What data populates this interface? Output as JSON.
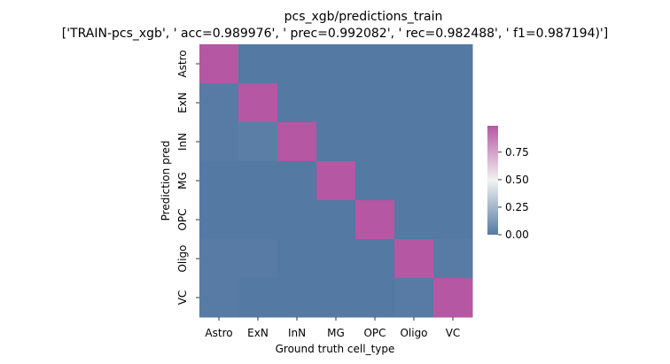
{
  "chart_data": {
    "type": "heatmap",
    "title": "pcs_xgb/predictions_train",
    "subtitle": "['TRAIN-pcs_xgb', ' acc=0.989976', '  prec=0.992082', ' rec=0.982488', ' f1=0.987194)']",
    "xlabel": "Ground truth cell_type",
    "ylabel": "Prediction pred",
    "x_categories": [
      "Astro",
      "ExN",
      "InN",
      "MG",
      "OPC",
      "Oligo",
      "VC"
    ],
    "y_categories": [
      "Astro",
      "ExN",
      "InN",
      "MG",
      "OPC",
      "Oligo",
      "VC"
    ],
    "values": [
      [
        0.99,
        0.0,
        0.0,
        0.0,
        0.0,
        0.0,
        0.0
      ],
      [
        0.01,
        0.99,
        0.0,
        0.0,
        0.0,
        0.0,
        0.0
      ],
      [
        0.01,
        0.02,
        0.99,
        0.0,
        0.0,
        0.0,
        0.0
      ],
      [
        0.0,
        0.0,
        0.0,
        0.99,
        0.0,
        0.0,
        0.0
      ],
      [
        0.0,
        0.0,
        0.0,
        0.0,
        0.99,
        0.0,
        0.0
      ],
      [
        0.01,
        0.01,
        0.0,
        0.0,
        0.0,
        0.99,
        0.01
      ],
      [
        0.01,
        0.0,
        0.0,
        0.0,
        0.0,
        0.01,
        0.99
      ]
    ],
    "colorbar": {
      "range": [
        0,
        0.99
      ],
      "ticks": [
        0.0,
        0.25,
        0.5,
        0.75
      ],
      "tick_labels": [
        "0.00",
        "0.25",
        "0.50",
        "0.75"
      ]
    },
    "colors": {
      "low": "#5479a3",
      "mid": "#f2f2f2",
      "high": "#b557a3"
    },
    "grid": false,
    "legend": "colorbar-right"
  }
}
